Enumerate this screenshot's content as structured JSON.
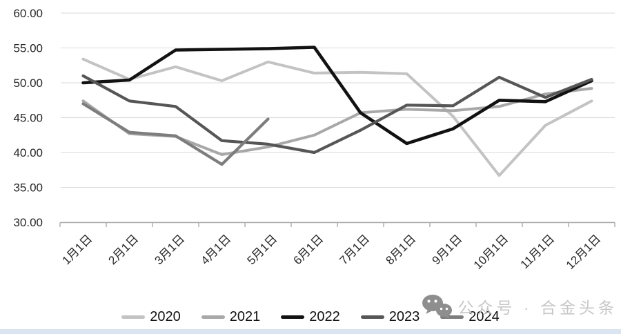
{
  "chart_data": {
    "type": "line",
    "title": "",
    "xlabel": "",
    "ylabel": "",
    "categories": [
      "1月1日",
      "2月1日",
      "3月1日",
      "4月1日",
      "5月1日",
      "6月1日",
      "7月1日",
      "8月1日",
      "9月1日",
      "10月1日",
      "11月1日",
      "12月1日"
    ],
    "series": [
      {
        "name": "2020",
        "color": "#c3c3c3",
        "width": 4,
        "values": [
          53.4,
          50.5,
          52.3,
          50.3,
          53.0,
          51.4,
          51.5,
          51.3,
          45.2,
          36.7,
          43.9,
          47.4
        ]
      },
      {
        "name": "2021",
        "color": "#a8a8a8",
        "width": 4,
        "values": [
          47.4,
          42.7,
          42.3,
          39.7,
          40.8,
          42.5,
          45.7,
          46.2,
          46.0,
          46.6,
          48.4,
          49.2
        ]
      },
      {
        "name": "2022",
        "color": "#121212",
        "width": 4.6,
        "values": [
          50.0,
          50.4,
          54.7,
          54.8,
          54.9,
          55.1,
          45.7,
          41.3,
          43.4,
          47.5,
          47.3,
          50.3
        ]
      },
      {
        "name": "2023",
        "color": "#565656",
        "width": 4.2,
        "values": [
          51.0,
          47.4,
          46.6,
          41.7,
          41.2,
          40.0,
          43.2,
          46.8,
          46.7,
          50.8,
          47.9,
          50.5
        ]
      },
      {
        "name": "2024",
        "color": "#7d7d7d",
        "width": 4.2,
        "values": [
          47.0,
          42.9,
          42.4,
          38.3,
          44.8,
          null,
          null,
          null,
          null,
          null,
          null,
          null
        ]
      }
    ],
    "ylim": [
      30,
      60
    ],
    "ytick_step": 5,
    "ytick_labels": [
      "60.00",
      "55.00",
      "50.00",
      "45.00",
      "40.00",
      "35.00",
      "30.00"
    ],
    "grid": "horizontal",
    "legend_position": "bottom",
    "x_tick_label_rotation": 45
  },
  "watermark": {
    "icon": "wechat-icon",
    "text": "公众号 · 合金头条"
  },
  "colors": {
    "gridline": "#d9d9d9",
    "axis": "#ababab",
    "tick_label": "#262626",
    "watermark_text": "#c7c7c7",
    "watermark_icon": "#8e8e8e",
    "bottom_strip": "#dbe5f1"
  }
}
